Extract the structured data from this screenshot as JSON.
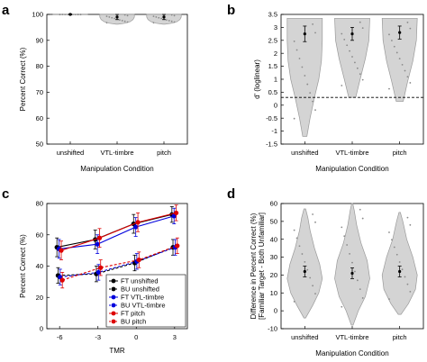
{
  "chart_data": [
    {
      "panel": "a",
      "type": "violin",
      "categories": [
        "unshifted",
        "VTL-timbre",
        "pitch"
      ],
      "xlabel": "Manipulation Condition",
      "ylabel": "Percent Correct (%)",
      "ylim": [
        50,
        100
      ],
      "yticks": [
        50,
        60,
        70,
        80,
        90,
        100
      ],
      "grid": false,
      "means": [
        100,
        99,
        99
      ],
      "errors": [
        0.2,
        1.0,
        1.0
      ],
      "violins": [
        {
          "profile": [
            [
              99.9,
              1.0
            ],
            [
              100,
              1.0
            ]
          ]
        },
        {
          "profile": [
            [
              96.2,
              0.05
            ],
            [
              96.6,
              0.45
            ],
            [
              97.2,
              0.75
            ],
            [
              98.0,
              0.92
            ],
            [
              99.0,
              1.0
            ],
            [
              100,
              1.0
            ]
          ]
        },
        {
          "profile": [
            [
              96.2,
              0.05
            ],
            [
              96.6,
              0.45
            ],
            [
              97.2,
              0.75
            ],
            [
              98.0,
              0.92
            ],
            [
              99.0,
              1.0
            ],
            [
              100,
              1.0
            ]
          ]
        }
      ]
    },
    {
      "panel": "b",
      "type": "violin",
      "categories": [
        "unshifted",
        "VTL-timbre",
        "pitch"
      ],
      "xlabel": "Manipulation Condition",
      "ylabel": "d' (loglinear)",
      "ylim": [
        -1.5,
        3.5
      ],
      "yticks": [
        -1.5,
        -1,
        -0.5,
        0,
        0.5,
        1,
        1.5,
        2,
        2.5,
        3,
        3.5
      ],
      "grid": false,
      "reference_line": 0.3,
      "means": [
        2.75,
        2.75,
        2.8
      ],
      "errors": [
        0.3,
        0.25,
        0.25
      ],
      "violins": [
        {
          "profile": [
            [
              -1.2,
              0.12
            ],
            [
              -0.5,
              0.3
            ],
            [
              0.3,
              0.55
            ],
            [
              1.0,
              0.8
            ],
            [
              1.7,
              0.95
            ],
            [
              2.5,
              1.0
            ],
            [
              3.35,
              1.0
            ]
          ]
        },
        {
          "profile": [
            [
              0.3,
              0.2
            ],
            [
              1.0,
              0.45
            ],
            [
              1.8,
              0.75
            ],
            [
              2.5,
              0.95
            ],
            [
              3.35,
              1.0
            ]
          ]
        },
        {
          "profile": [
            [
              0.15,
              0.2
            ],
            [
              0.9,
              0.45
            ],
            [
              1.7,
              0.75
            ],
            [
              2.5,
              0.95
            ],
            [
              3.35,
              1.0
            ]
          ]
        }
      ]
    },
    {
      "panel": "c",
      "type": "line",
      "x": [
        -6,
        -3,
        0,
        3
      ],
      "xlabel": "TMR",
      "ylabel": "Percent Correct (%)",
      "xlim": [
        -7,
        4
      ],
      "ylim": [
        0,
        80
      ],
      "xticks": [
        -6,
        -3,
        0,
        3
      ],
      "yticks": [
        0,
        20,
        40,
        60,
        80
      ],
      "grid": false,
      "legend": "bottom-right",
      "series": [
        {
          "name": "FT unshifted",
          "color": "#000000",
          "dash": false,
          "values": [
            52,
            57,
            67,
            73
          ],
          "err": [
            6,
            6,
            6,
            5
          ]
        },
        {
          "name": "BU unshifted",
          "color": "#000000",
          "dash": true,
          "values": [
            34,
            35,
            42,
            52
          ],
          "err": [
            5,
            5,
            5,
            5
          ]
        },
        {
          "name": "FT VTL-timbre",
          "color": "#0000dd",
          "dash": false,
          "values": [
            51,
            54,
            65,
            72
          ],
          "err": [
            6,
            6,
            6,
            5
          ]
        },
        {
          "name": "BU VTL-timbre",
          "color": "#0000dd",
          "dash": true,
          "values": [
            33,
            36,
            43,
            52
          ],
          "err": [
            5,
            5,
            5,
            5
          ]
        },
        {
          "name": "FT pitch",
          "color": "#dd0000",
          "dash": false,
          "values": [
            50,
            58,
            68,
            74
          ],
          "err": [
            6,
            6,
            6,
            5
          ]
        },
        {
          "name": "BU pitch",
          "color": "#dd0000",
          "dash": true,
          "values": [
            31,
            39,
            44,
            53
          ],
          "err": [
            5,
            5,
            5,
            5
          ]
        }
      ]
    },
    {
      "panel": "d",
      "type": "violin",
      "categories": [
        "unshifted",
        "VTL-timbre",
        "pitch"
      ],
      "xlabel": "Manipulation Condition",
      "ylabel": "Difference in Percent Correct (%)",
      "ylabel2": "[Familiar Target - Both Unfamiliar]",
      "ylim": [
        -10,
        60
      ],
      "yticks": [
        -10,
        0,
        10,
        20,
        30,
        40,
        50,
        60
      ],
      "grid": false,
      "means": [
        22,
        21,
        22
      ],
      "errors": [
        3,
        3,
        3
      ],
      "violins": [
        {
          "profile": [
            [
              -4,
              0.05
            ],
            [
              3,
              0.45
            ],
            [
              10,
              0.8
            ],
            [
              18,
              1.0
            ],
            [
              26,
              0.85
            ],
            [
              35,
              0.55
            ],
            [
              45,
              0.3
            ],
            [
              52,
              0.18
            ],
            [
              57,
              0.05
            ]
          ]
        },
        {
          "profile": [
            [
              -8,
              0.05
            ],
            [
              0,
              0.35
            ],
            [
              8,
              0.75
            ],
            [
              18,
              1.0
            ],
            [
              28,
              0.85
            ],
            [
              38,
              0.5
            ],
            [
              48,
              0.25
            ],
            [
              56,
              0.12
            ],
            [
              60,
              0.03
            ]
          ]
        },
        {
          "profile": [
            [
              -2,
              0.08
            ],
            [
              4,
              0.5
            ],
            [
              12,
              0.9
            ],
            [
              20,
              1.0
            ],
            [
              30,
              0.75
            ],
            [
              40,
              0.4
            ],
            [
              50,
              0.18
            ],
            [
              55,
              0.04
            ]
          ]
        }
      ]
    }
  ]
}
